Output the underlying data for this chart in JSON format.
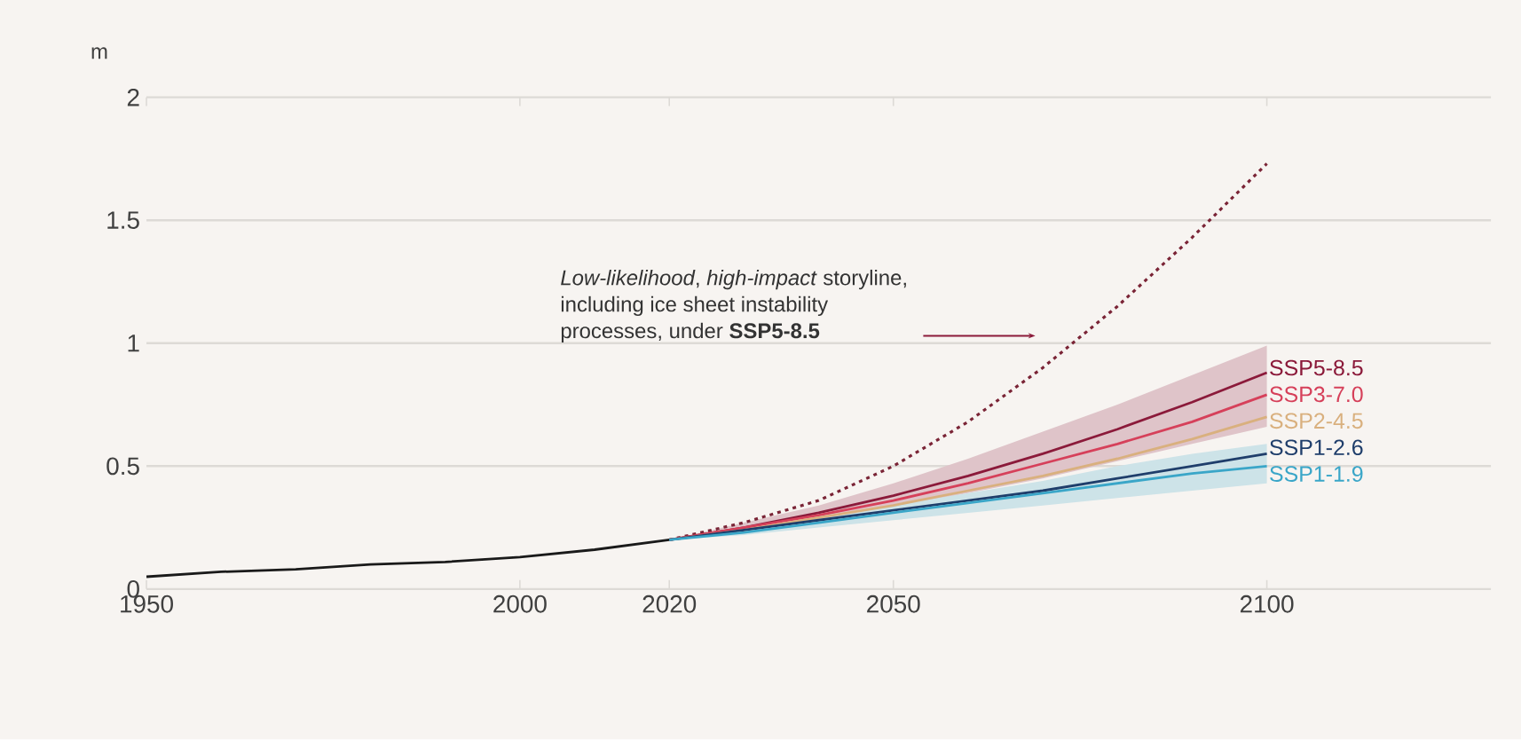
{
  "chart_data": {
    "type": "line",
    "ylabel": "m",
    "xlim": [
      1950,
      2130
    ],
    "ylim": [
      0,
      2
    ],
    "xticks": [
      1950,
      2000,
      2020,
      2050,
      2100
    ],
    "yticks": [
      0,
      0.5,
      1,
      1.5,
      2
    ],
    "grid": "y",
    "marker": "none",
    "annotations": [
      {
        "text": "*Low-likelihood*, *high-impact* storyline, including ice sheet instability processes, under **SSP5-8.5**",
        "x": 2069,
        "y": 1.03
      }
    ],
    "series": [
      {
        "color": "#1a1a1a",
        "x": [
          1950,
          1960,
          1970,
          1980,
          1990,
          2000,
          2010,
          2020
        ],
        "values": [
          0.05,
          0.07,
          0.08,
          0.1,
          0.11,
          0.13,
          0.16,
          0.2
        ]
      },
      {
        "color": "#7a2436",
        "line_style": "dotted",
        "x": [
          2020,
          2030,
          2040,
          2050,
          2060,
          2070,
          2080,
          2090,
          2100
        ],
        "values": [
          0.2,
          0.27,
          0.36,
          0.5,
          0.68,
          0.9,
          1.15,
          1.43,
          1.73
        ]
      },
      {
        "name": "SSP5-8.5",
        "color": "#8b1a3a",
        "x": [
          2020,
          2030,
          2040,
          2050,
          2060,
          2070,
          2080,
          2090,
          2100
        ],
        "values": [
          0.2,
          0.25,
          0.31,
          0.38,
          0.46,
          0.55,
          0.65,
          0.76,
          0.88
        ],
        "lower": [
          0.2,
          0.23,
          0.28,
          0.33,
          0.39,
          0.45,
          0.52,
          0.59,
          0.66
        ],
        "upper": [
          0.2,
          0.27,
          0.34,
          0.43,
          0.53,
          0.64,
          0.75,
          0.87,
          0.99
        ]
      },
      {
        "name": "SSP3-7.0",
        "color": "#d6405a",
        "x": [
          2020,
          2030,
          2040,
          2050,
          2060,
          2070,
          2080,
          2090,
          2100
        ],
        "values": [
          0.2,
          0.25,
          0.3,
          0.36,
          0.43,
          0.51,
          0.59,
          0.68,
          0.79
        ]
      },
      {
        "name": "SSP2-4.5",
        "color": "#d9b07e",
        "x": [
          2020,
          2030,
          2040,
          2050,
          2060,
          2070,
          2080,
          2090,
          2100
        ],
        "values": [
          0.2,
          0.24,
          0.29,
          0.34,
          0.4,
          0.46,
          0.53,
          0.61,
          0.7
        ]
      },
      {
        "name": "SSP1-2.6",
        "color": "#1f3e6b",
        "x": [
          2020,
          2030,
          2040,
          2050,
          2060,
          2070,
          2080,
          2090,
          2100
        ],
        "values": [
          0.2,
          0.24,
          0.28,
          0.32,
          0.36,
          0.4,
          0.45,
          0.5,
          0.55
        ]
      },
      {
        "name": "SSP1-1.9",
        "color": "#3aa6c8",
        "x": [
          2020,
          2030,
          2040,
          2050,
          2060,
          2070,
          2080,
          2090,
          2100
        ],
        "values": [
          0.2,
          0.23,
          0.27,
          0.31,
          0.35,
          0.39,
          0.43,
          0.47,
          0.5
        ],
        "lower": [
          0.2,
          0.22,
          0.25,
          0.28,
          0.31,
          0.34,
          0.37,
          0.4,
          0.43
        ],
        "upper": [
          0.2,
          0.24,
          0.29,
          0.34,
          0.39,
          0.44,
          0.5,
          0.55,
          0.59
        ]
      }
    ]
  }
}
